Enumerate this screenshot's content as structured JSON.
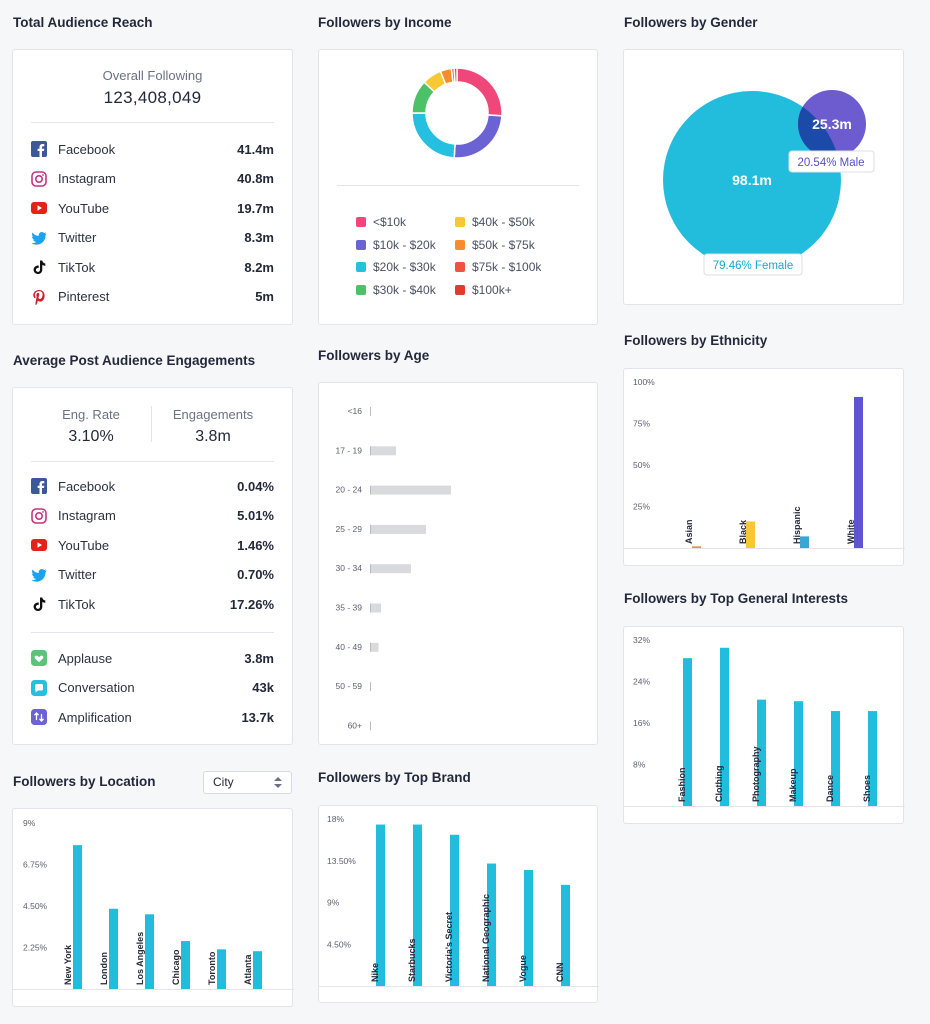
{
  "reach": {
    "title": "Total Audience Reach",
    "overall_label": "Overall Following",
    "overall_value": "123,408,049",
    "platforms": [
      {
        "name": "Facebook",
        "value": "41.4m",
        "icon": "facebook-icon"
      },
      {
        "name": "Instagram",
        "value": "40.8m",
        "icon": "instagram-icon"
      },
      {
        "name": "YouTube",
        "value": "19.7m",
        "icon": "youtube-icon"
      },
      {
        "name": "Twitter",
        "value": "8.3m",
        "icon": "twitter-icon"
      },
      {
        "name": "TikTok",
        "value": "8.2m",
        "icon": "tiktok-icon"
      },
      {
        "name": "Pinterest",
        "value": "5m",
        "icon": "pinterest-icon"
      }
    ]
  },
  "engagement": {
    "title": "Average Post Audience Engagements",
    "rate_label": "Eng. Rate",
    "rate_value": "3.10%",
    "eng_label": "Engagements",
    "eng_value": "3.8m",
    "platforms": [
      {
        "name": "Facebook",
        "value": "0.04%",
        "icon": "facebook-icon"
      },
      {
        "name": "Instagram",
        "value": "5.01%",
        "icon": "instagram-icon"
      },
      {
        "name": "YouTube",
        "value": "1.46%",
        "icon": "youtube-icon"
      },
      {
        "name": "Twitter",
        "value": "0.70%",
        "icon": "twitter-icon"
      },
      {
        "name": "TikTok",
        "value": "17.26%",
        "icon": "tiktok-icon"
      }
    ],
    "types": [
      {
        "name": "Applause",
        "value": "3.8m",
        "icon": "applause-icon"
      },
      {
        "name": "Conversation",
        "value": "43k",
        "icon": "conversation-icon"
      },
      {
        "name": "Amplification",
        "value": "13.7k",
        "icon": "amplification-icon"
      }
    ]
  },
  "location": {
    "title": "Followers by Location",
    "select_value": "City"
  },
  "income_title": "Followers by Income",
  "age_title": "Followers by Age",
  "brand_title": "Followers by Top Brand",
  "gender_title": "Followers by Gender",
  "ethnicity_title": "Followers by Ethnicity",
  "interests_title": "Followers by Top General Interests",
  "colors": {
    "bar": "#22bcdd",
    "age_bar": "#d9dadd",
    "female": "#22bcdd",
    "male": "#6c5ccf",
    "overlap": "#1c4aa8"
  },
  "chart_data": [
    {
      "id": "income",
      "type": "pie",
      "title": "Followers by Income",
      "legend_position": "bottom",
      "categories": [
        "<$10k",
        "$10k - $20k",
        "$20k - $30k",
        "$30k - $40k",
        "$40k - $50k",
        "$50k - $75k",
        "$75k - $100k",
        "$100k+"
      ],
      "values": [
        26,
        25,
        24,
        12,
        7,
        4,
        1,
        1
      ],
      "colors": [
        "#f0477a",
        "#6b63d4",
        "#25bfe0",
        "#4cc167",
        "#f6c833",
        "#f78c2e",
        "#ee5440",
        "#e23b2c"
      ]
    },
    {
      "id": "age",
      "type": "bar",
      "orientation": "horizontal",
      "title": "Followers by Age",
      "categories": [
        "<16",
        "17 - 19",
        "20 - 24",
        "25 - 29",
        "30 - 34",
        "35 - 39",
        "40 - 49",
        "50 - 59",
        "60+"
      ],
      "values": [
        0,
        10,
        32,
        22,
        16,
        4,
        3,
        0,
        0
      ],
      "xlim": [
        0,
        40
      ]
    },
    {
      "id": "gender",
      "type": "venn",
      "title": "Followers by Gender",
      "series": [
        {
          "name": "Female",
          "value": "98.1m",
          "percent_label": "79.46% Female",
          "percent": 79.46
        },
        {
          "name": "Male",
          "value": "25.3m",
          "percent_label": "20.54% Male",
          "percent": 20.54
        }
      ]
    },
    {
      "id": "ethnicity",
      "type": "bar",
      "title": "Followers by Ethnicity",
      "categories": [
        "Asian",
        "Black",
        "Hispanic",
        "White"
      ],
      "values": [
        1,
        16,
        7,
        91
      ],
      "colors": [
        "#f78c2e",
        "#f6c833",
        "#3aa6d4",
        "#5f55cf"
      ],
      "yticks": [
        "100%",
        "75%",
        "50%",
        "25%"
      ],
      "ylim": [
        0,
        100
      ]
    },
    {
      "id": "interests",
      "type": "bar",
      "title": "Followers by Top General Interests",
      "categories": [
        "Fashion",
        "Clothing",
        "Photography",
        "Makeup",
        "Dance",
        "Shoes"
      ],
      "values": [
        28.5,
        30.5,
        20.5,
        20.2,
        18.3,
        18.3
      ],
      "yticks": [
        "32%",
        "24%",
        "16%",
        "8%"
      ],
      "ylim": [
        0,
        32
      ]
    },
    {
      "id": "location",
      "type": "bar",
      "title": "Followers by Location",
      "categories": [
        "New York",
        "London",
        "Los Angeles",
        "Chicago",
        "Toronto",
        "Atlanta"
      ],
      "values": [
        7.8,
        4.35,
        4.05,
        2.6,
        2.15,
        2.05
      ],
      "yticks": [
        "9%",
        "6.75%",
        "4.50%",
        "2.25%"
      ],
      "ylim": [
        0,
        9
      ]
    },
    {
      "id": "brand",
      "type": "bar",
      "title": "Followers by Top Brand",
      "categories": [
        "Nike",
        "Starbucks",
        "Victoria's Secret",
        "National Geographic",
        "Vogue",
        "CNN"
      ],
      "values": [
        17.4,
        17.4,
        16.3,
        13.2,
        12.5,
        10.9
      ],
      "yticks": [
        "18%",
        "13.50%",
        "9%",
        "4.50%"
      ],
      "ylim": [
        0,
        18
      ]
    }
  ]
}
